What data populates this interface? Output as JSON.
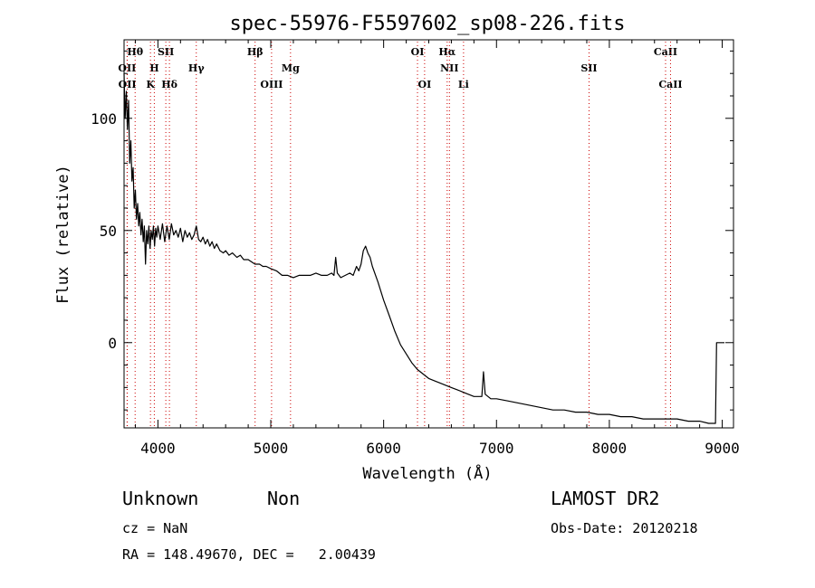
{
  "chart_data": {
    "type": "line",
    "title": "spec-55976-F5597602_sp08-226.fits",
    "xlabel": "Wavelength (Å)",
    "ylabel": "Flux (relative)",
    "xlim": [
      3700,
      9100
    ],
    "ylim": [
      -38,
      135
    ],
    "x_ticks": [
      4000,
      5000,
      6000,
      7000,
      8000,
      9000
    ],
    "y_ticks": [
      0,
      50,
      100
    ],
    "grid": false,
    "series": [
      {
        "color": "#000000",
        "points": [
          [
            3700,
            120
          ],
          [
            3710,
            100
          ],
          [
            3720,
            112
          ],
          [
            3730,
            95
          ],
          [
            3740,
            108
          ],
          [
            3750,
            80
          ],
          [
            3760,
            90
          ],
          [
            3770,
            72
          ],
          [
            3780,
            78
          ],
          [
            3790,
            60
          ],
          [
            3800,
            68
          ],
          [
            3810,
            55
          ],
          [
            3820,
            62
          ],
          [
            3830,
            52
          ],
          [
            3840,
            58
          ],
          [
            3850,
            48
          ],
          [
            3860,
            55
          ],
          [
            3870,
            45
          ],
          [
            3880,
            52
          ],
          [
            3890,
            35
          ],
          [
            3900,
            50
          ],
          [
            3910,
            44
          ],
          [
            3920,
            52
          ],
          [
            3930,
            42
          ],
          [
            3940,
            50
          ],
          [
            3950,
            46
          ],
          [
            3960,
            52
          ],
          [
            3970,
            43
          ],
          [
            3980,
            51
          ],
          [
            3990,
            47
          ],
          [
            4000,
            52
          ],
          [
            4020,
            46
          ],
          [
            4040,
            53
          ],
          [
            4060,
            45
          ],
          [
            4080,
            52
          ],
          [
            4100,
            46
          ],
          [
            4120,
            53
          ],
          [
            4140,
            48
          ],
          [
            4160,
            50
          ],
          [
            4180,
            47
          ],
          [
            4200,
            51
          ],
          [
            4220,
            45
          ],
          [
            4240,
            50
          ],
          [
            4260,
            47
          ],
          [
            4280,
            49
          ],
          [
            4300,
            46
          ],
          [
            4320,
            48
          ],
          [
            4340,
            52
          ],
          [
            4360,
            46
          ],
          [
            4380,
            45
          ],
          [
            4400,
            47
          ],
          [
            4420,
            44
          ],
          [
            4440,
            46
          ],
          [
            4460,
            43
          ],
          [
            4480,
            45
          ],
          [
            4500,
            42
          ],
          [
            4520,
            44
          ],
          [
            4550,
            41
          ],
          [
            4580,
            40
          ],
          [
            4600,
            41
          ],
          [
            4630,
            39
          ],
          [
            4660,
            40
          ],
          [
            4700,
            38
          ],
          [
            4730,
            39
          ],
          [
            4760,
            37
          ],
          [
            4800,
            37
          ],
          [
            4830,
            36
          ],
          [
            4860,
            35
          ],
          [
            4900,
            35
          ],
          [
            4930,
            34
          ],
          [
            4960,
            34
          ],
          [
            5000,
            33
          ],
          [
            5050,
            32
          ],
          [
            5100,
            30
          ],
          [
            5150,
            30
          ],
          [
            5200,
            29
          ],
          [
            5250,
            30
          ],
          [
            5300,
            30
          ],
          [
            5350,
            30
          ],
          [
            5400,
            31
          ],
          [
            5450,
            30
          ],
          [
            5500,
            30
          ],
          [
            5540,
            31
          ],
          [
            5560,
            30
          ],
          [
            5575,
            38
          ],
          [
            5590,
            31
          ],
          [
            5620,
            29
          ],
          [
            5660,
            30
          ],
          [
            5700,
            31
          ],
          [
            5730,
            30
          ],
          [
            5760,
            34
          ],
          [
            5780,
            32
          ],
          [
            5800,
            35
          ],
          [
            5820,
            41
          ],
          [
            5840,
            43
          ],
          [
            5860,
            40
          ],
          [
            5880,
            38
          ],
          [
            5900,
            34
          ],
          [
            5950,
            27
          ],
          [
            6000,
            19
          ],
          [
            6050,
            12
          ],
          [
            6100,
            5
          ],
          [
            6150,
            -1
          ],
          [
            6200,
            -5
          ],
          [
            6250,
            -9
          ],
          [
            6300,
            -12
          ],
          [
            6350,
            -14
          ],
          [
            6400,
            -16
          ],
          [
            6450,
            -17
          ],
          [
            6500,
            -18
          ],
          [
            6550,
            -19
          ],
          [
            6600,
            -20
          ],
          [
            6650,
            -21
          ],
          [
            6700,
            -22
          ],
          [
            6750,
            -23
          ],
          [
            6800,
            -24
          ],
          [
            6850,
            -24
          ],
          [
            6870,
            -24
          ],
          [
            6885,
            -13
          ],
          [
            6900,
            -23
          ],
          [
            6950,
            -25
          ],
          [
            7000,
            -25
          ],
          [
            7100,
            -26
          ],
          [
            7200,
            -27
          ],
          [
            7300,
            -28
          ],
          [
            7400,
            -29
          ],
          [
            7500,
            -30
          ],
          [
            7600,
            -30
          ],
          [
            7700,
            -31
          ],
          [
            7800,
            -31
          ],
          [
            7900,
            -32
          ],
          [
            8000,
            -32
          ],
          [
            8100,
            -33
          ],
          [
            8200,
            -33
          ],
          [
            8300,
            -34
          ],
          [
            8400,
            -34
          ],
          [
            8500,
            -34
          ],
          [
            8600,
            -34
          ],
          [
            8700,
            -35
          ],
          [
            8800,
            -35
          ],
          [
            8880,
            -36
          ],
          [
            8940,
            -36
          ],
          [
            8950,
            0
          ],
          [
            9020,
            0
          ]
        ]
      }
    ],
    "line_markers": [
      {
        "label": "Hθ",
        "x": 3798,
        "row": 0,
        "color": "#cc0000"
      },
      {
        "label": "OII",
        "x": 3727,
        "row": 1,
        "color": "#cc0000"
      },
      {
        "label": "OII",
        "x": 3729,
        "row": 2,
        "color": "#cc0000"
      },
      {
        "label": "SII",
        "x": 4070,
        "row": 0,
        "color": "#cc0000"
      },
      {
        "label": "H",
        "x": 3968,
        "row": 1,
        "color": "#cc0000"
      },
      {
        "label": "K",
        "x": 3934,
        "row": 2,
        "color": "#cc0000"
      },
      {
        "label": "Hδ",
        "x": 4102,
        "row": 2,
        "color": "#cc0000"
      },
      {
        "label": "Hγ",
        "x": 4340,
        "row": 1,
        "color": "#cc0000"
      },
      {
        "label": "Hβ",
        "x": 4861,
        "row": 0,
        "color": "#cc0000"
      },
      {
        "label": "OIII",
        "x": 5007,
        "row": 2,
        "color": "#cc0000"
      },
      {
        "label": "Mg",
        "x": 5175,
        "row": 1,
        "color": "#cc0000"
      },
      {
        "label": "OI",
        "x": 6300,
        "row": 0,
        "color": "#cc0000"
      },
      {
        "label": "OI",
        "x": 6363,
        "row": 2,
        "color": "#cc0000"
      },
      {
        "label": "Hα",
        "x": 6563,
        "row": 0,
        "color": "#cc0000"
      },
      {
        "label": "NII",
        "x": 6583,
        "row": 1,
        "color": "#cc0000"
      },
      {
        "label": "Li",
        "x": 6708,
        "row": 2,
        "color": "#cc0000"
      },
      {
        "label": "SII",
        "x": 7820,
        "row": 1,
        "color": "#cc0000"
      },
      {
        "label": "CaII",
        "x": 8498,
        "row": 0,
        "color": "#cc0000"
      },
      {
        "label": "CaII",
        "x": 8542,
        "row": 2,
        "color": "#cc0000"
      }
    ]
  },
  "info": {
    "class": "Unknown",
    "subclass": "Non",
    "survey": "LAMOST DR2",
    "cz": "cz = NaN",
    "obs_date": "Obs-Date: 20120218",
    "coords": "RA = 148.49670, DEC =   2.00439"
  }
}
